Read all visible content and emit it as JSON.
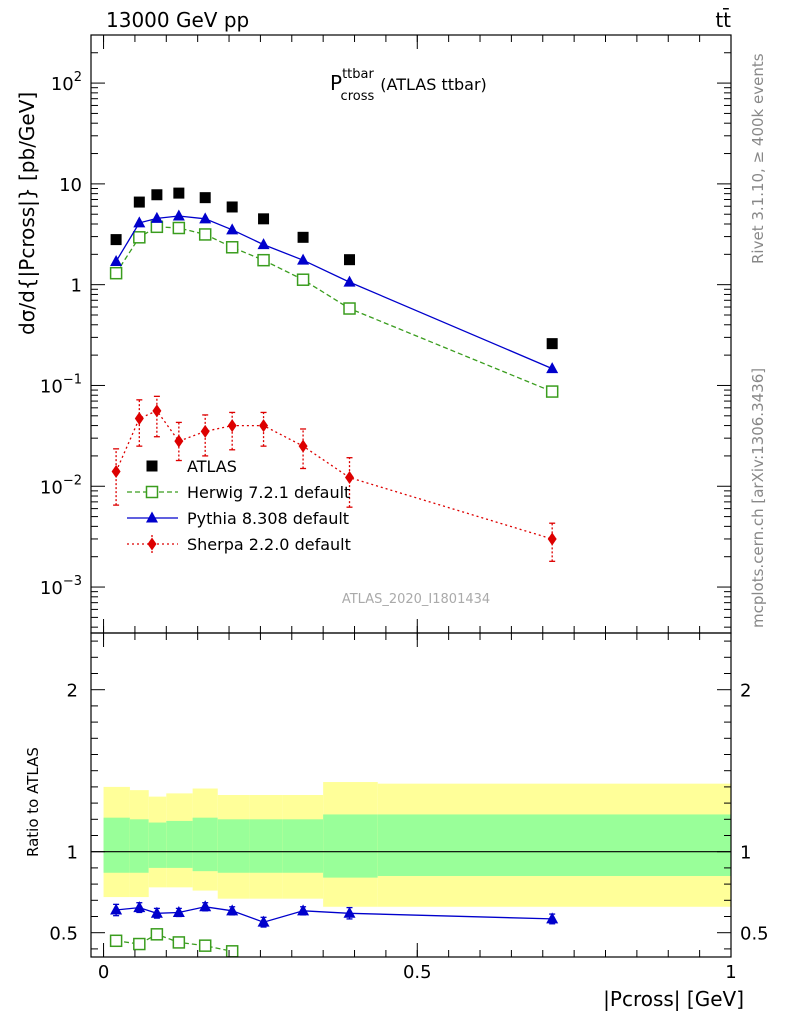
{
  "header": {
    "energy_label": "13000 GeV pp",
    "process_label": "tt̄"
  },
  "side_labels": {
    "rivet": "Rivet 3.1.10, ≥ 400k events",
    "mcplots": "mcplots.cern.ch [arXiv:1306.3436]"
  },
  "analysis_id": "ATLAS_2020_I1801434",
  "chart_data": [
    {
      "type": "scatter",
      "panel": "main",
      "title": "P",
      "title_sup": "ttbar",
      "title_sub": "cross",
      "title_suffix": "(ATLAS ttbar)",
      "ylabel": "dσ/d{|Pcross|} [pb/GeV]",
      "y_scale": "log",
      "ylim": [
        0.00035,
        300
      ],
      "xlim": [
        -0.02,
        1.0
      ],
      "y_ticks": [
        {
          "v": 0.001,
          "base": "10",
          "exp": "−3"
        },
        {
          "v": 0.01,
          "base": "10",
          "exp": "−2"
        },
        {
          "v": 0.1,
          "base": "10",
          "exp": "−1"
        },
        {
          "v": 1,
          "base": "1",
          "exp": ""
        },
        {
          "v": 10,
          "base": "10",
          "exp": ""
        },
        {
          "v": 100,
          "base": "10",
          "exp": "2"
        }
      ],
      "legend_position": "center-left",
      "series": [
        {
          "name": "ATLAS",
          "marker": "square-filled",
          "color": "#000000",
          "x": [
            0.02,
            0.057,
            0.085,
            0.12,
            0.162,
            0.205,
            0.255,
            0.318,
            0.392,
            0.715
          ],
          "y": [
            2.8,
            6.6,
            7.8,
            8.1,
            7.3,
            5.9,
            4.5,
            2.95,
            1.77,
            0.26
          ]
        },
        {
          "name": "Herwig 7.2.1 default",
          "marker": "square-open",
          "color": "#3a9d1e",
          "x": [
            0.02,
            0.057,
            0.085,
            0.12,
            0.162,
            0.205,
            0.255,
            0.318,
            0.392,
            0.715
          ],
          "y": [
            1.3,
            2.95,
            3.75,
            3.65,
            3.15,
            2.35,
            1.75,
            1.12,
            0.58,
            0.087
          ]
        },
        {
          "name": "Pythia 8.308 default",
          "marker": "triangle-filled",
          "color": "#0000cc",
          "x": [
            0.02,
            0.057,
            0.085,
            0.12,
            0.162,
            0.205,
            0.255,
            0.318,
            0.392,
            0.715
          ],
          "y": [
            1.7,
            4.1,
            4.55,
            4.8,
            4.5,
            3.5,
            2.5,
            1.75,
            1.06,
            0.147
          ]
        },
        {
          "name": "Sherpa 2.2.0 default",
          "marker": "diamond-filled",
          "color": "#dd0000",
          "x": [
            0.02,
            0.057,
            0.085,
            0.12,
            0.162,
            0.205,
            0.255,
            0.318,
            0.392,
            0.715
          ],
          "y": [
            0.014,
            0.047,
            0.056,
            0.028,
            0.035,
            0.04,
            0.04,
            0.025,
            0.0122,
            0.003
          ],
          "err_low": [
            0.0075,
            0.022,
            0.025,
            0.01,
            0.015,
            0.017,
            0.015,
            0.01,
            0.006,
            0.0012
          ],
          "err_high": [
            0.0095,
            0.025,
            0.022,
            0.015,
            0.016,
            0.014,
            0.014,
            0.012,
            0.007,
            0.0013
          ]
        }
      ]
    },
    {
      "type": "scatter",
      "panel": "ratio",
      "ylabel": "Ratio to ATLAS",
      "xlabel": "|Pcross| [GeV]",
      "ylim": [
        0.35,
        2.35
      ],
      "xlim": [
        -0.02,
        1.0
      ],
      "y_ticks": [
        0.5,
        1,
        2
      ],
      "y_tick_labels": [
        "0.5",
        "1",
        "2"
      ],
      "x_ticks": [
        0,
        0.5,
        1
      ],
      "x_tick_labels": [
        "0",
        "0.5",
        "1"
      ],
      "bands": {
        "bins": [
          0,
          0.042,
          0.072,
          0.1,
          0.142,
          0.182,
          0.232,
          0.285,
          0.35,
          0.437,
          1.0
        ],
        "outer_low": [
          0.72,
          0.72,
          0.78,
          0.78,
          0.76,
          0.71,
          0.71,
          0.71,
          0.66,
          0.66
        ],
        "outer_high": [
          1.4,
          1.38,
          1.34,
          1.36,
          1.39,
          1.35,
          1.35,
          1.35,
          1.43,
          1.42
        ],
        "inner_low": [
          0.87,
          0.87,
          0.9,
          0.9,
          0.88,
          0.87,
          0.87,
          0.87,
          0.84,
          0.85
        ],
        "inner_high": [
          1.21,
          1.2,
          1.18,
          1.19,
          1.21,
          1.2,
          1.2,
          1.2,
          1.23,
          1.23
        ],
        "outer_color": "#ffff99",
        "inner_color": "#99ff99"
      },
      "series": [
        {
          "name": "Pythia 8.308 default",
          "marker": "triangle-filled",
          "color": "#0000cc",
          "x": [
            0.02,
            0.057,
            0.085,
            0.12,
            0.162,
            0.205,
            0.255,
            0.318,
            0.392,
            0.715
          ],
          "y": [
            0.64,
            0.655,
            0.62,
            0.625,
            0.66,
            0.635,
            0.565,
            0.635,
            0.62,
            0.585
          ],
          "err": [
            0.035,
            0.03,
            0.03,
            0.025,
            0.025,
            0.025,
            0.03,
            0.025,
            0.035,
            0.03
          ]
        },
        {
          "name": "Herwig 7.2.1 default",
          "marker": "square-open",
          "color": "#3a9d1e",
          "x": [
            0.02,
            0.057,
            0.085,
            0.12,
            0.162,
            0.205
          ],
          "y": [
            0.45,
            0.43,
            0.49,
            0.44,
            0.42,
            0.385
          ],
          "err": [
            0.025,
            0.02,
            0.02,
            0.015,
            0.015,
            0.015
          ]
        }
      ]
    }
  ]
}
